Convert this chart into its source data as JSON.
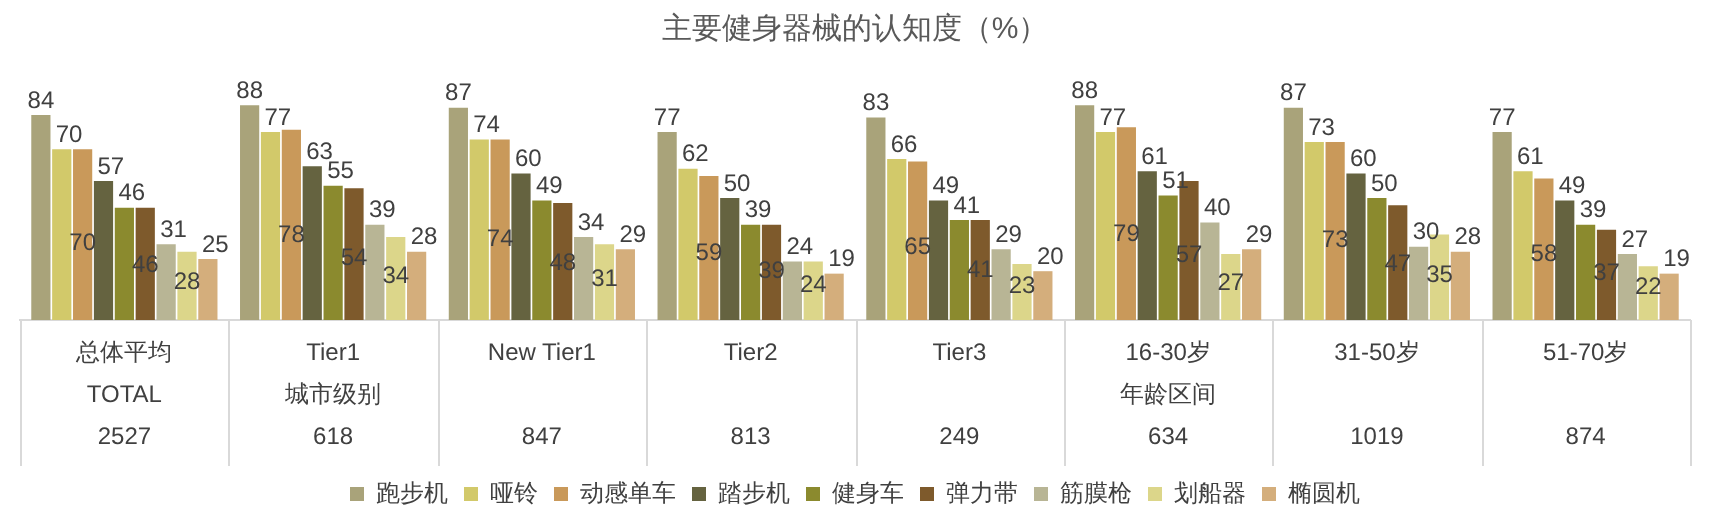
{
  "chart_data": {
    "type": "bar",
    "title": "主要健身器械的认知度（%）",
    "categories": [
      "总体平均",
      "Tier1",
      "New Tier1",
      "Tier2",
      "Tier3",
      "16-30岁",
      "31-50岁",
      "51-70岁"
    ],
    "annotations": [
      "TOTAL",
      "城市级别",
      "年龄区间",
      "2527",
      "618",
      "847",
      "813",
      "249",
      "634",
      "1019",
      "874"
    ],
    "series": [
      {
        "name": "跑步机",
        "color": "#a9a37a",
        "values": [
          84,
          88,
          87,
          77,
          83,
          88,
          87,
          77
        ]
      },
      {
        "name": "哑铃",
        "color": "#d2c96a",
        "values": [
          70,
          77,
          74,
          62,
          66,
          77,
          73,
          61
        ]
      },
      {
        "name": "动感单车",
        "color": "#c9995a",
        "values": [
          70,
          78,
          74,
          59,
          65,
          79,
          73,
          58
        ]
      },
      {
        "name": "踏步机",
        "color": "#656340",
        "values": [
          57,
          63,
          60,
          50,
          49,
          61,
          60,
          49
        ]
      },
      {
        "name": "健身车",
        "color": "#8b8a2e",
        "values": [
          46,
          55,
          49,
          39,
          41,
          51,
          50,
          39
        ]
      },
      {
        "name": "弹力带",
        "color": "#7e5a2c",
        "values": [
          46,
          54,
          48,
          39,
          41,
          57,
          47,
          37
        ]
      },
      {
        "name": "筋膜枪",
        "color": "#b8b595",
        "values": [
          31,
          39,
          34,
          24,
          29,
          40,
          30,
          27
        ]
      },
      {
        "name": "划船器",
        "color": "#dcd68a",
        "values": [
          28,
          34,
          31,
          24,
          23,
          27,
          35,
          22
        ]
      },
      {
        "name": "椭圆机",
        "color": "#d4ae7c",
        "values": [
          25,
          28,
          29,
          19,
          20,
          29,
          28,
          19
        ]
      }
    ],
    "data_labels": true,
    "legend": "bottom",
    "grid": false
  }
}
